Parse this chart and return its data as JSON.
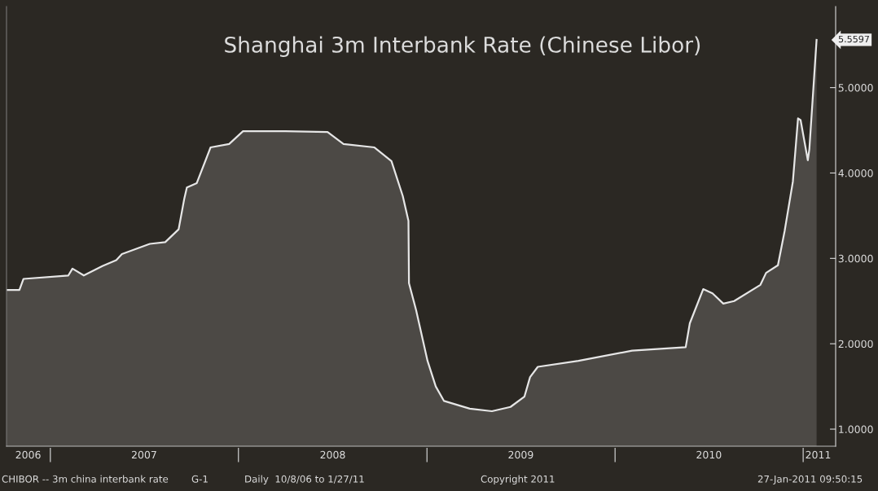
{
  "chart_data": {
    "type": "area",
    "title": "Shanghai 3m Interbank Rate (Chinese Libor)",
    "x": [
      "2006-10-08",
      "2006-11-02",
      "2006-11-10",
      "2007-02-05",
      "2007-02-13",
      "2007-03-07",
      "2007-04-12",
      "2007-05-09",
      "2007-05-20",
      "2007-07-13",
      "2007-08-12",
      "2007-09-07",
      "2007-09-18",
      "2007-09-23",
      "2007-10-12",
      "2007-11-08",
      "2007-12-14",
      "2008-01-10",
      "2008-04-01",
      "2008-06-22",
      "2008-07-23",
      "2008-09-21",
      "2008-10-24",
      "2008-11-15",
      "2008-11-26",
      "2008-11-27",
      "2008-12-11",
      "2009-01-02",
      "2009-01-18",
      "2009-02-03",
      "2009-03-25",
      "2009-05-07",
      "2009-06-12",
      "2009-07-09",
      "2009-07-20",
      "2009-08-04",
      "2009-10-22",
      "2010-02-03",
      "2010-05-18",
      "2010-05-26",
      "2010-06-21",
      "2010-07-09",
      "2010-07-30",
      "2010-08-20",
      "2010-10-10",
      "2010-10-21",
      "2010-11-13",
      "2010-11-26",
      "2010-12-12",
      "2010-12-22",
      "2010-12-27",
      "2011-01-10",
      "2011-01-13",
      "2011-01-27"
    ],
    "series": [
      {
        "color": "#e6e6e6",
        "values": [
          2.63,
          2.63,
          2.76,
          2.8,
          2.88,
          2.8,
          2.91,
          2.98,
          3.05,
          3.17,
          3.19,
          3.34,
          3.7,
          3.83,
          3.88,
          4.3,
          4.34,
          4.49,
          4.49,
          4.48,
          4.34,
          4.3,
          4.14,
          3.73,
          3.44,
          2.71,
          2.39,
          1.8,
          1.5,
          1.33,
          1.24,
          1.21,
          1.26,
          1.38,
          1.61,
          1.73,
          1.8,
          1.92,
          1.96,
          2.24,
          2.64,
          2.59,
          2.47,
          2.5,
          2.69,
          2.83,
          2.92,
          3.32,
          3.9,
          4.64,
          4.62,
          4.15,
          4.28,
          5.5597
        ]
      }
    ],
    "xlim": [
      "2006-10-08",
      "2011-03-05"
    ],
    "xticks": [
      {
        "value": "2006-11-19",
        "label": "2006"
      },
      {
        "value": "2007-07-02",
        "label": "2007"
      },
      {
        "value": "2008-07-02",
        "label": "2008"
      },
      {
        "value": "2009-07-02",
        "label": "2009"
      },
      {
        "value": "2010-07-02",
        "label": "2010"
      },
      {
        "value": "2011-01-30",
        "label": "2011"
      }
    ],
    "ylim": [
      0.8,
      5.95
    ],
    "yticks": [
      {
        "value": 1,
        "label": "1.0000"
      },
      {
        "value": 2,
        "label": "2.0000"
      },
      {
        "value": 3,
        "label": "3.0000"
      },
      {
        "value": 4,
        "label": "4.0000"
      },
      {
        "value": 5,
        "label": "5.0000"
      }
    ],
    "grid": false,
    "annotations": [
      {
        "text": "5.5597",
        "x": "2011-01-27",
        "y": 5.5597
      },
      "CHIBOR -- 3m china interbank rate",
      "G-1",
      "Daily  10/8/06 to 1/27/11",
      "Copyright 2011",
      "27-Jan-2011 09:50:15"
    ]
  }
}
